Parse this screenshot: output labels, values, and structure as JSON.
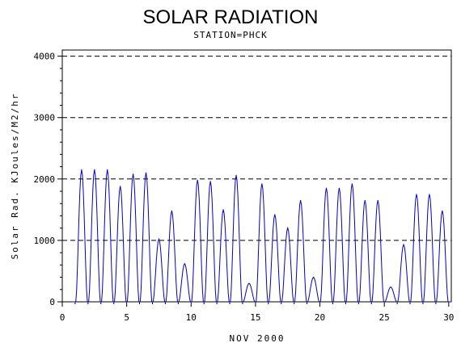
{
  "chart_data": {
    "type": "line",
    "title": "SOLAR RADIATION",
    "subtitle": "STATION=PHCK",
    "xlabel": "NOV 2000",
    "ylabel": "Solar Rad. KJoules/M2/hr",
    "xlim": [
      0,
      30.2
    ],
    "ylim": [
      0,
      4100
    ],
    "x_ticks": [
      0,
      5,
      10,
      15,
      20,
      25,
      30
    ],
    "y_ticks": [
      0,
      1000,
      2000,
      3000,
      4000
    ],
    "grid": "horizontal-dashed",
    "series": [
      {
        "color": "#0000cc",
        "peaks": [
          [
            1.5,
            2150
          ],
          [
            2.5,
            2150
          ],
          [
            3.5,
            2150
          ],
          [
            4.5,
            1880
          ],
          [
            5.5,
            2080
          ],
          [
            6.5,
            2100
          ],
          [
            7.5,
            1020
          ],
          [
            8.5,
            1480
          ],
          [
            9.5,
            620
          ],
          [
            10.5,
            1980
          ],
          [
            11.5,
            1960
          ],
          [
            12.5,
            1500
          ],
          [
            13.5,
            2060
          ],
          [
            14.5,
            300
          ],
          [
            15.5,
            1920
          ],
          [
            16.5,
            1420
          ],
          [
            17.5,
            1200
          ],
          [
            18.5,
            1650
          ],
          [
            19.5,
            400
          ],
          [
            20.5,
            1850
          ],
          [
            21.5,
            1850
          ],
          [
            22.5,
            1920
          ],
          [
            23.5,
            1650
          ],
          [
            24.5,
            1650
          ],
          [
            25.5,
            240
          ],
          [
            26.5,
            930
          ],
          [
            27.5,
            1750
          ],
          [
            28.5,
            1750
          ],
          [
            29.5,
            1480
          ]
        ]
      }
    ]
  }
}
